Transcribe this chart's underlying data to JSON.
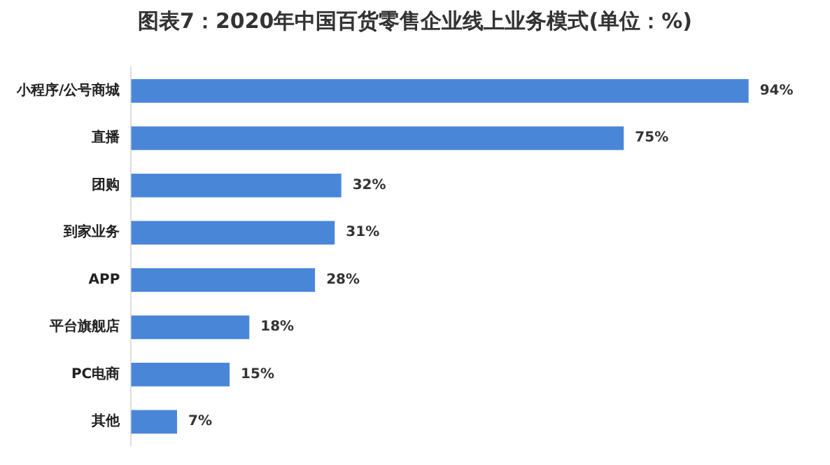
{
  "chart_data": {
    "type": "bar",
    "orientation": "horizontal",
    "title": "图表7：2020年中国百货零售企业线上业务模式(单位：%)",
    "categories": [
      "小程序/公号商城",
      "直播",
      "团购",
      "到家业务",
      "APP",
      "平台旗舰店",
      "PC电商",
      "其他"
    ],
    "values": [
      94,
      75,
      32,
      31,
      28,
      18,
      15,
      7
    ],
    "value_labels": [
      "94%",
      "75%",
      "32%",
      "31%",
      "28%",
      "18%",
      "15%",
      "7%"
    ],
    "color": "#4a86d8",
    "grid": false,
    "tick_labels": "y"
  }
}
